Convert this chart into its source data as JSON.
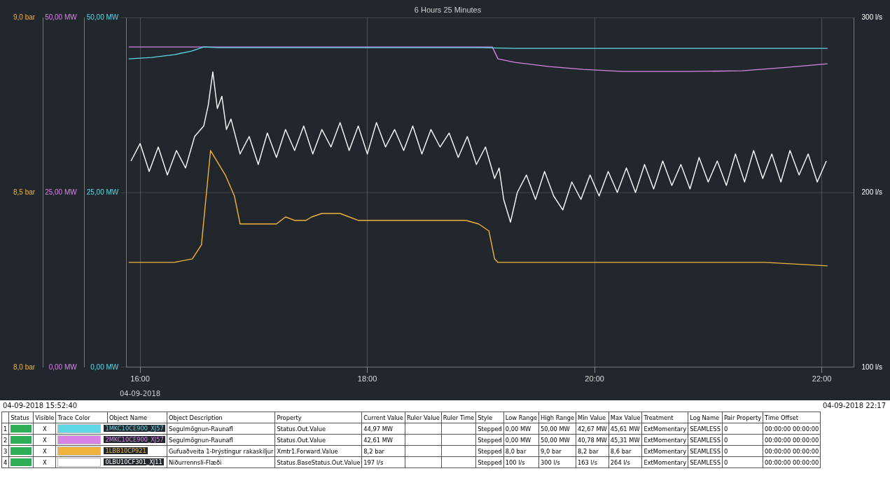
{
  "chart_data": {
    "type": "line",
    "title": "6 Hours 25 Minutes",
    "grid": true,
    "legend": "bottom",
    "xlim": [
      15.878,
      22.283
    ],
    "xticks": [
      {
        "value": 16,
        "label": "16:00"
      },
      {
        "value": 18,
        "label": "18:00"
      },
      {
        "value": 20,
        "label": "20:00"
      },
      {
        "value": 22,
        "label": "22:00"
      }
    ],
    "ylim": [
      0,
      50
    ],
    "yticks": [
      {
        "value": 0,
        "label": "0,00 MW"
      },
      {
        "value": 25,
        "label": "25,00 MW"
      },
      {
        "value": 50,
        "label": "50,00 MW"
      }
    ],
    "y2lim": [
      8,
      9
    ],
    "y2ticks": [
      {
        "value": 8,
        "label": "8,0 bar"
      },
      {
        "value": 8.5,
        "label": "8,5 bar"
      },
      {
        "value": 9,
        "label": "9,0 bar"
      }
    ],
    "y3lim": [
      100,
      300
    ],
    "y3ticks": [
      {
        "value": 100,
        "label": "100 l/s"
      },
      {
        "value": 200,
        "label": "200 l/s"
      },
      {
        "value": 300,
        "label": "300 l/s"
      }
    ],
    "series": [
      {
        "name": "1MKC10CE900_XJ57",
        "color": "#5fd8e6",
        "x": [
          15.9,
          16.1,
          16.3,
          16.45,
          16.56,
          16.7,
          17.5,
          19.0,
          19.3,
          20.5,
          21.5,
          22.05
        ],
        "values": [
          44.1,
          44.3,
          44.7,
          45.2,
          45.8,
          45.7,
          45.7,
          45.7,
          45.6,
          45.6,
          45.6,
          45.6
        ]
      },
      {
        "name": "2MKC10CE900_XJ57",
        "color": "#d884e6",
        "x": [
          15.9,
          16.5,
          17.5,
          18.5,
          19.1,
          19.15,
          19.3,
          19.6,
          19.9,
          20.25,
          20.8,
          21.3,
          21.7,
          22.05
        ],
        "values": [
          45.8,
          45.8,
          45.8,
          45.8,
          45.8,
          44.1,
          43.6,
          43.0,
          42.6,
          42.3,
          42.3,
          42.4,
          42.9,
          43.4
        ]
      },
      {
        "name": "1LBB10CP921",
        "color": "#f0b43c",
        "axis": "y2",
        "x": [
          15.9,
          16.3,
          16.46,
          16.54,
          16.62,
          16.75,
          16.83,
          16.88,
          17.2,
          17.28,
          17.36,
          17.46,
          17.51,
          17.6,
          17.76,
          17.92,
          18.29,
          18.45,
          18.66,
          18.87,
          18.98,
          19.07,
          19.12,
          19.15,
          19.5,
          20.5,
          21.5,
          22.05
        ],
        "values": [
          8.3,
          8.3,
          8.31,
          8.35,
          8.62,
          8.55,
          8.49,
          8.41,
          8.41,
          8.43,
          8.42,
          8.42,
          8.43,
          8.44,
          8.44,
          8.42,
          8.42,
          8.42,
          8.42,
          8.42,
          8.41,
          8.39,
          8.31,
          8.3,
          8.3,
          8.3,
          8.3,
          8.29
        ]
      },
      {
        "name": "0LBU10CF301_XJ11",
        "color": "#ffffff",
        "axis": "y3",
        "x": [
          15.92,
          16.0,
          16.08,
          16.16,
          16.24,
          16.32,
          16.4,
          16.48,
          16.56,
          16.6,
          16.64,
          16.68,
          16.72,
          16.76,
          16.8,
          16.88,
          16.96,
          17.04,
          17.12,
          17.2,
          17.28,
          17.36,
          17.44,
          17.52,
          17.6,
          17.68,
          17.76,
          17.84,
          17.92,
          18.0,
          18.08,
          18.16,
          18.24,
          18.32,
          18.4,
          18.48,
          18.56,
          18.64,
          18.72,
          18.8,
          18.88,
          18.96,
          19.04,
          19.12,
          19.16,
          19.2,
          19.26,
          19.32,
          19.4,
          19.48,
          19.56,
          19.64,
          19.72,
          19.8,
          19.88,
          19.96,
          20.04,
          20.12,
          20.2,
          20.28,
          20.36,
          20.44,
          20.52,
          20.6,
          20.68,
          20.76,
          20.84,
          20.92,
          21.0,
          21.08,
          21.16,
          21.24,
          21.32,
          21.4,
          21.48,
          21.56,
          21.64,
          21.72,
          21.8,
          21.88,
          21.96,
          22.04
        ],
        "values": [
          218,
          228,
          212,
          226,
          210,
          224,
          214,
          232,
          238,
          250,
          269,
          248,
          255,
          236,
          242,
          222,
          232,
          216,
          234,
          220,
          236,
          224,
          238,
          222,
          236,
          226,
          240,
          224,
          238,
          222,
          240,
          226,
          236,
          224,
          238,
          222,
          236,
          226,
          234,
          220,
          232,
          216,
          226,
          208,
          214,
          196,
          183,
          200,
          210,
          196,
          212,
          198,
          190,
          206,
          196,
          210,
          198,
          212,
          200,
          214,
          200,
          216,
          202,
          218,
          204,
          216,
          202,
          220,
          206,
          218,
          204,
          222,
          206,
          224,
          208,
          222,
          206,
          224,
          210,
          222,
          206,
          218
        ]
      }
    ],
    "annotations": [
      "04-09-2018",
      "04-09-2018 15:52:40",
      "04-09-2018 22:17",
      "Status",
      "Visible",
      "Trace Color",
      "Object Name",
      "Object Description",
      "Property",
      "Current Value",
      "Ruler Value",
      "Ruler Time",
      "Style",
      "Low Range",
      "High Range",
      "Min Value",
      "Max Value",
      "Treatment",
      "Log Name",
      "Pair Property",
      "Time Offset",
      "1",
      "X",
      "Segulmögnun-Raunafl",
      "Status.Out.Value",
      "44,97 MW",
      "Stepped",
      "0,00 MW",
      "50,00 MW",
      "42,67 MW",
      "45,61 MW",
      "ExtMomentary",
      "SEAMLESS",
      "0",
      "00:00:00 00:00:00",
      "2",
      "X",
      "Segulmögnun-Raunafl",
      "Status.Out.Value",
      "42,61 MW",
      "Stepped",
      "0,00 MW",
      "50,00 MW",
      "40,78 MW",
      "45,31 MW",
      "ExtMomentary",
      "SEAMLESS",
      "0",
      "00:00:00 00:00:00",
      "3",
      "X",
      "Gufuaðveita 1-Þrýstingur rakaskiljur",
      "Xmtr1.Forward.Value",
      "8,2 bar",
      "Stepped",
      "8,0 bar",
      "9,0 bar",
      "8,2 bar",
      "8,6 bar",
      "ExtMomentary",
      "SEAMLESS",
      "0",
      "00:00:00 00:00:00",
      "4",
      "X",
      "Niðurrennsli-Flæði",
      "Status.BaseStatus.Out.Value",
      "197 l/s",
      "Stepped",
      "100 l/s",
      "300 l/s",
      "163 l/s",
      "264 l/s",
      "ExtMomentary",
      "SEAMLESS",
      "0",
      "00:00:00 00:00:00"
    ]
  }
}
